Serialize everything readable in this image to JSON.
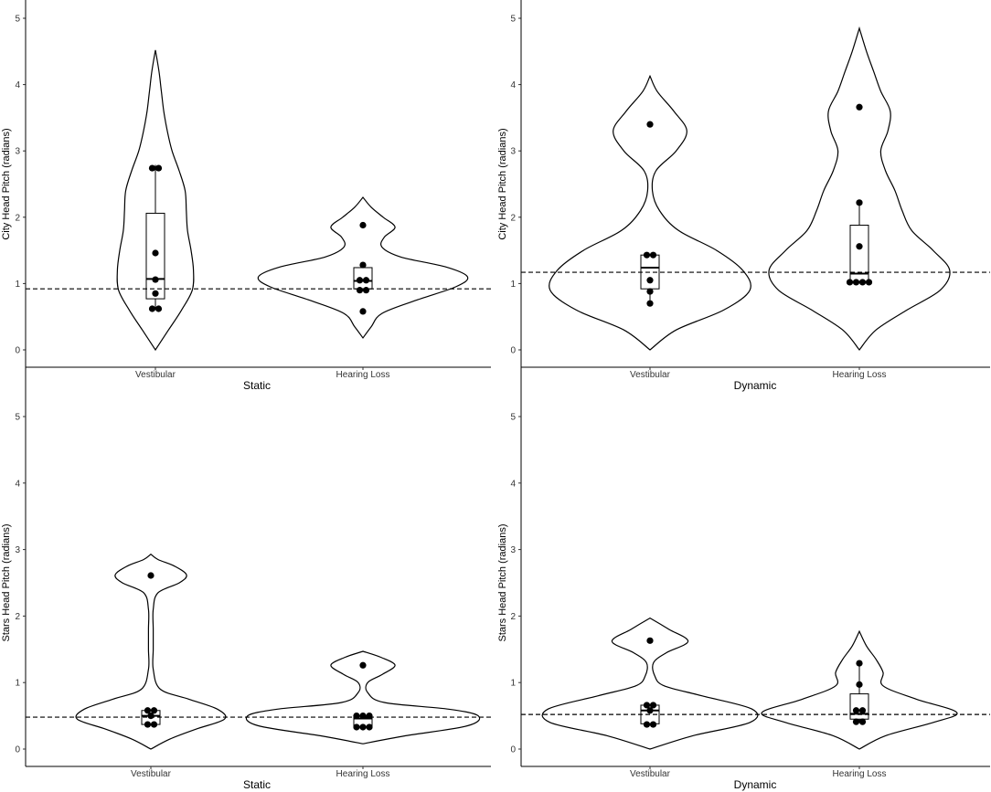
{
  "chart_data": [
    {
      "type": "violin",
      "xlabel": "Static",
      "ylabel": "City Head Pitch (radians)",
      "ylim": [
        0,
        5
      ],
      "yticks": [
        0,
        1,
        2,
        3,
        4,
        5
      ],
      "categories": [
        "Vestibular",
        "Hearing Loss"
      ],
      "reference_line": 0.92,
      "groups": [
        {
          "category": "Vestibular",
          "points": [
            0.62,
            0.62,
            0.85,
            1.06,
            1.46,
            2.74,
            2.74
          ],
          "box": {
            "min": 0.62,
            "q1": 0.77,
            "median": 1.07,
            "q3": 2.06,
            "max": 2.79
          },
          "violin": [
            [
              0.0,
              0.0
            ],
            [
              0.3,
              0.11
            ],
            [
              0.6,
              0.22
            ],
            [
              0.9,
              0.31
            ],
            [
              1.2,
              0.32
            ],
            [
              1.5,
              0.3
            ],
            [
              1.8,
              0.27
            ],
            [
              2.1,
              0.26
            ],
            [
              2.4,
              0.25
            ],
            [
              2.7,
              0.2
            ],
            [
              3.0,
              0.14
            ],
            [
              3.3,
              0.1
            ],
            [
              3.6,
              0.07
            ],
            [
              3.9,
              0.05
            ],
            [
              4.2,
              0.03
            ],
            [
              4.52,
              0.0
            ]
          ]
        },
        {
          "category": "Hearing Loss",
          "points": [
            0.58,
            0.9,
            0.9,
            1.05,
            1.05,
            1.28,
            1.88
          ],
          "box": {
            "min": 0.9,
            "q1": 0.92,
            "median": 1.04,
            "q3": 1.24,
            "max": 1.28
          },
          "violin": [
            [
              0.18,
              0.0
            ],
            [
              0.35,
              0.07
            ],
            [
              0.55,
              0.16
            ],
            [
              0.75,
              0.45
            ],
            [
              0.95,
              0.78
            ],
            [
              1.1,
              0.88
            ],
            [
              1.25,
              0.7
            ],
            [
              1.4,
              0.32
            ],
            [
              1.55,
              0.16
            ],
            [
              1.7,
              0.18
            ],
            [
              1.85,
              0.27
            ],
            [
              2.0,
              0.17
            ],
            [
              2.15,
              0.07
            ],
            [
              2.3,
              0.0
            ]
          ]
        }
      ]
    },
    {
      "type": "violin",
      "xlabel": "Dynamic",
      "ylabel": "City Head Pitch (radians)",
      "ylim": [
        0,
        5
      ],
      "yticks": [
        0,
        1,
        2,
        3,
        4,
        5
      ],
      "categories": [
        "Vestibular",
        "Hearing Loss"
      ],
      "reference_line": 1.17,
      "groups": [
        {
          "category": "Vestibular",
          "points": [
            0.7,
            0.88,
            1.05,
            1.43,
            1.43,
            3.4
          ],
          "box": {
            "min": 0.7,
            "q1": 0.92,
            "median": 1.24,
            "q3": 1.43,
            "max": 1.43
          },
          "violin": [
            [
              0.0,
              0.0
            ],
            [
              0.3,
              0.22
            ],
            [
              0.6,
              0.62
            ],
            [
              0.9,
              0.84
            ],
            [
              1.2,
              0.78
            ],
            [
              1.5,
              0.56
            ],
            [
              1.8,
              0.24
            ],
            [
              2.1,
              0.08
            ],
            [
              2.4,
              0.02
            ],
            [
              2.7,
              0.05
            ],
            [
              3.0,
              0.22
            ],
            [
              3.3,
              0.31
            ],
            [
              3.6,
              0.2
            ],
            [
              3.9,
              0.06
            ],
            [
              4.13,
              0.0
            ]
          ]
        },
        {
          "category": "Hearing Loss",
          "points": [
            1.02,
            1.02,
            1.02,
            1.02,
            1.56,
            2.22,
            3.66
          ],
          "box": {
            "min": 1.02,
            "q1": 1.03,
            "median": 1.15,
            "q3": 1.88,
            "max": 2.22
          },
          "violin": [
            [
              0.0,
              0.0
            ],
            [
              0.3,
              0.14
            ],
            [
              0.6,
              0.4
            ],
            [
              0.9,
              0.68
            ],
            [
              1.2,
              0.76
            ],
            [
              1.5,
              0.62
            ],
            [
              1.8,
              0.44
            ],
            [
              2.1,
              0.36
            ],
            [
              2.4,
              0.3
            ],
            [
              2.7,
              0.22
            ],
            [
              3.0,
              0.18
            ],
            [
              3.3,
              0.24
            ],
            [
              3.6,
              0.26
            ],
            [
              3.9,
              0.18
            ],
            [
              4.2,
              0.12
            ],
            [
              4.5,
              0.06
            ],
            [
              4.85,
              0.0
            ]
          ]
        }
      ]
    },
    {
      "type": "violin",
      "xlabel": "Static",
      "ylabel": "Stars Head Pitch (radians)",
      "ylim": [
        0,
        5
      ],
      "yticks": [
        0,
        1,
        2,
        3,
        4,
        5
      ],
      "categories": [
        "Vestibular",
        "Hearing Loss"
      ],
      "reference_line": 0.48,
      "groups": [
        {
          "category": "Vestibular",
          "points": [
            0.37,
            0.37,
            0.5,
            0.58,
            0.58,
            2.61
          ],
          "box": {
            "min": 0.37,
            "q1": 0.37,
            "median": 0.5,
            "q3": 0.58,
            "max": 0.58
          },
          "violin": [
            [
              0.0,
              0.0
            ],
            [
              0.15,
              0.16
            ],
            [
              0.3,
              0.38
            ],
            [
              0.45,
              0.62
            ],
            [
              0.6,
              0.56
            ],
            [
              0.75,
              0.32
            ],
            [
              0.9,
              0.08
            ],
            [
              1.2,
              0.02
            ],
            [
              1.5,
              0.02
            ],
            [
              1.8,
              0.02
            ],
            [
              2.1,
              0.02
            ],
            [
              2.35,
              0.06
            ],
            [
              2.5,
              0.24
            ],
            [
              2.62,
              0.3
            ],
            [
              2.75,
              0.2
            ],
            [
              2.85,
              0.06
            ],
            [
              2.93,
              0.0
            ]
          ]
        },
        {
          "category": "Hearing Loss",
          "points": [
            0.33,
            0.33,
            0.33,
            0.5,
            0.5,
            0.5,
            1.26
          ],
          "box": {
            "min": 0.33,
            "q1": 0.34,
            "median": 0.46,
            "q3": 0.5,
            "max": 0.5
          },
          "violin": [
            [
              0.08,
              0.0
            ],
            [
              0.2,
              0.36
            ],
            [
              0.35,
              0.88
            ],
            [
              0.5,
              0.97
            ],
            [
              0.6,
              0.72
            ],
            [
              0.7,
              0.18
            ],
            [
              0.85,
              0.04
            ],
            [
              1.0,
              0.04
            ],
            [
              1.12,
              0.16
            ],
            [
              1.26,
              0.27
            ],
            [
              1.38,
              0.15
            ],
            [
              1.47,
              0.0
            ]
          ]
        }
      ]
    },
    {
      "type": "violin",
      "xlabel": "Dynamic",
      "ylabel": "Stars Head Pitch (radians)",
      "ylim": [
        0,
        5
      ],
      "yticks": [
        0,
        1,
        2,
        3,
        4,
        5
      ],
      "categories": [
        "Vestibular",
        "Hearing Loss"
      ],
      "reference_line": 0.52,
      "groups": [
        {
          "category": "Vestibular",
          "points": [
            0.37,
            0.37,
            0.58,
            0.66,
            0.66,
            1.63
          ],
          "box": {
            "min": 0.37,
            "q1": 0.38,
            "median": 0.58,
            "q3": 0.66,
            "max": 0.67
          },
          "violin": [
            [
              0.0,
              0.0
            ],
            [
              0.2,
              0.36
            ],
            [
              0.4,
              0.84
            ],
            [
              0.6,
              0.86
            ],
            [
              0.8,
              0.44
            ],
            [
              0.95,
              0.12
            ],
            [
              1.1,
              0.04
            ],
            [
              1.3,
              0.03
            ],
            [
              1.45,
              0.14
            ],
            [
              1.62,
              0.32
            ],
            [
              1.8,
              0.16
            ],
            [
              1.97,
              0.0
            ]
          ]
        },
        {
          "category": "Hearing Loss",
          "points": [
            0.41,
            0.41,
            0.58,
            0.58,
            0.97,
            1.29
          ],
          "box": {
            "min": 0.41,
            "q1": 0.45,
            "median": 0.53,
            "q3": 0.83,
            "max": 1.29
          },
          "violin": [
            [
              0.0,
              0.0
            ],
            [
              0.2,
              0.22
            ],
            [
              0.4,
              0.62
            ],
            [
              0.55,
              0.82
            ],
            [
              0.75,
              0.48
            ],
            [
              0.95,
              0.2
            ],
            [
              1.15,
              0.2
            ],
            [
              1.35,
              0.14
            ],
            [
              1.55,
              0.06
            ],
            [
              1.77,
              0.0
            ]
          ]
        }
      ]
    }
  ]
}
